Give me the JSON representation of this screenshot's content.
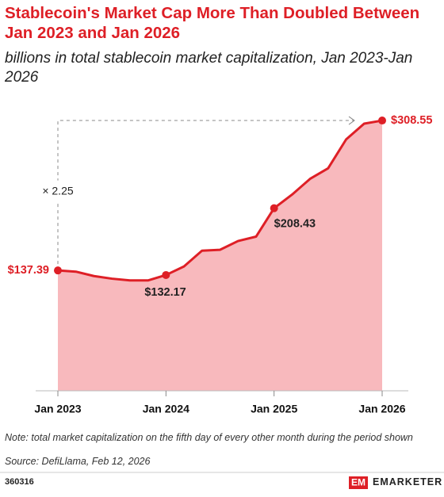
{
  "chart_data": {
    "type": "area",
    "title": "Stablecoin's Market Cap More Than Doubled Between Jan 2023 and Jan 2026",
    "subtitle": "billions in total stablecoin market capitalization, Jan 2023-Jan 2026",
    "categories": [
      "Jan 2023",
      null,
      null,
      null,
      null,
      null,
      "Jan 2024",
      null,
      null,
      null,
      null,
      null,
      "Jan 2025",
      null,
      null,
      null,
      null,
      null,
      "Jan 2026"
    ],
    "values": [
      137.39,
      136,
      131,
      128,
      126,
      126,
      132.17,
      142,
      160,
      161,
      171,
      176,
      208.43,
      224,
      242,
      254,
      287,
      305,
      308.55
    ],
    "value_labels": [
      "$137.39",
      null,
      null,
      null,
      null,
      null,
      "$132.17",
      null,
      null,
      null,
      null,
      null,
      "$208.43",
      null,
      null,
      null,
      null,
      null,
      "$308.55"
    ],
    "color": "#de1f26",
    "fill": "#f8b9bd",
    "ylim": [
      0,
      320
    ],
    "annotation": "× 2.25",
    "note": "Note: total market capitalization on the fifth day of every other month during the period shown",
    "source": "Source: DefiLlama, Feb 12, 2026"
  },
  "footer": {
    "id": "360316",
    "brand": "EMARKETER"
  }
}
